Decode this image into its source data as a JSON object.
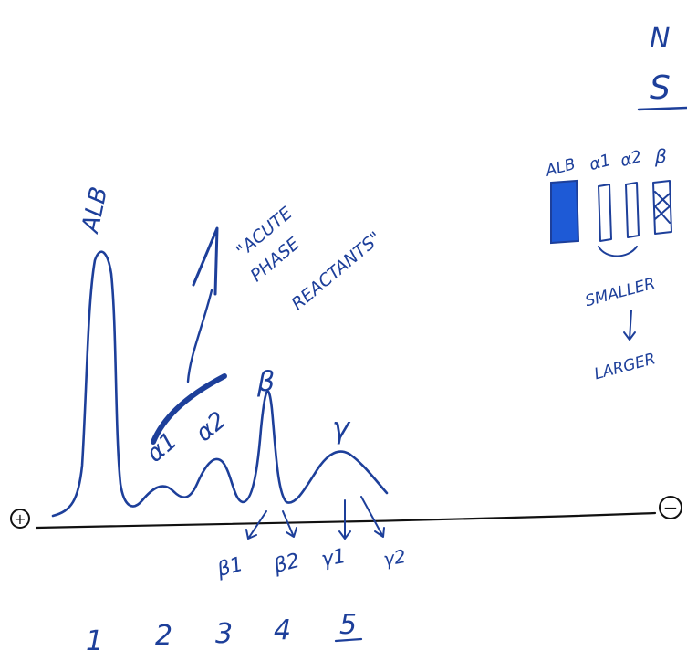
{
  "diagram": {
    "peaks": {
      "alb": "ALB",
      "alpha1": "α1",
      "alpha2": "α2",
      "beta": "β",
      "gamma": "γ"
    },
    "acute_phase_label": [
      "\"ACUTE",
      "PHASE",
      "REACTANTS\""
    ],
    "sub_bands": [
      "β1",
      "β2",
      "γ1",
      "γ2"
    ],
    "electrodes": {
      "positive": "+",
      "negative": "−"
    },
    "fraction_numbers": [
      "1",
      "2",
      "3",
      "4",
      "5"
    ],
    "corner_letters": [
      "N",
      "S"
    ],
    "strip": {
      "labels": [
        "ALB",
        "α1",
        "α2",
        "β"
      ],
      "note_top": "SMALLER",
      "note_bottom": "LARGER"
    },
    "colors": {
      "ink": "#1d3f9a",
      "highlight": "#1e5ad6",
      "baseline": "#111111"
    }
  }
}
